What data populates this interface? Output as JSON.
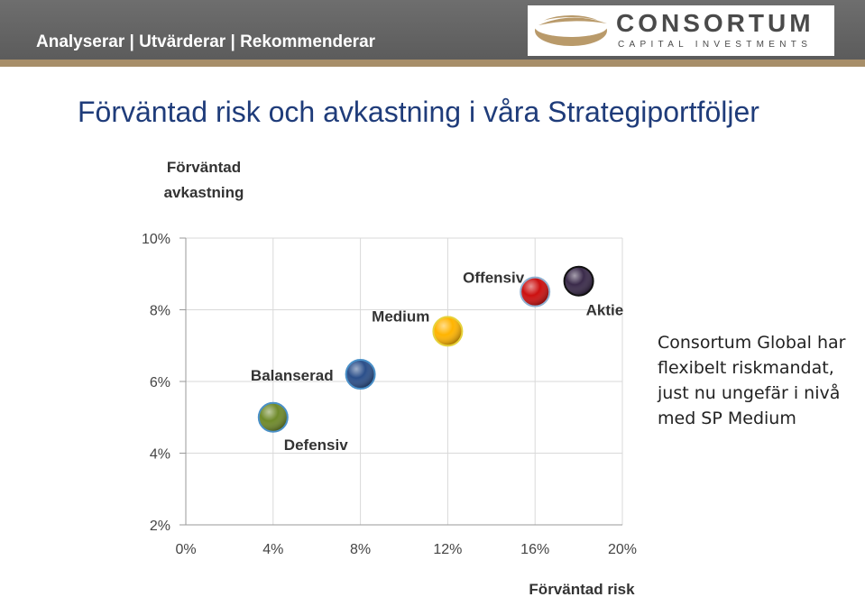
{
  "header": {
    "tagline": "Analyserar | Utvärderar | Rekommenderar",
    "logo_name": "CONSORTUM",
    "logo_subtitle": "CAPITAL INVESTMENTS",
    "background_color": "#636363",
    "stripe_color": "#a78e69"
  },
  "title": "Förväntad risk och avkastning i våra Strategiportföljer",
  "side_note": "Consortum Global har flexibelt riskmandat, just nu ungefär i nivå med SP Medium",
  "chart_data": {
    "type": "scatter",
    "ylabel_line1": "Förväntad",
    "ylabel_line2": "avkastning",
    "xlabel": "Förväntad risk",
    "xlim": [
      0,
      20
    ],
    "ylim": [
      2,
      10
    ],
    "x_ticks": [
      "0%",
      "4%",
      "8%",
      "12%",
      "16%",
      "20%"
    ],
    "y_ticks": [
      "2%",
      "4%",
      "6%",
      "8%",
      "10%"
    ],
    "grid": true,
    "points": [
      {
        "name": "Defensiv",
        "x": 4,
        "y": 5.0,
        "color": "#6f8a2a",
        "edge": "#4a90c8"
      },
      {
        "name": "Balanserad",
        "x": 8,
        "y": 6.2,
        "color": "#2b4f8a",
        "edge": "#4a90c8"
      },
      {
        "name": "Medium",
        "x": 12,
        "y": 7.4,
        "color": "#ffb400",
        "edge": "#e6d23c"
      },
      {
        "name": "Offensiv",
        "x": 16,
        "y": 8.5,
        "color": "#cc1010",
        "edge": "#8fb0d0"
      },
      {
        "name": "Aktie",
        "x": 18,
        "y": 8.8,
        "color": "#3a2a4a",
        "edge": "#111111"
      }
    ]
  }
}
